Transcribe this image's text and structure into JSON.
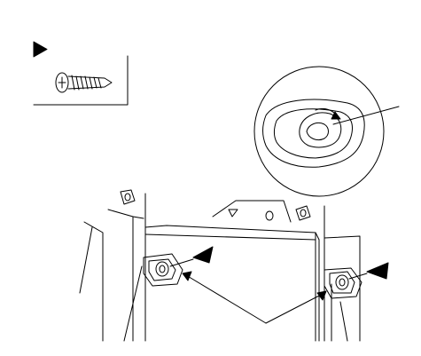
{
  "diagram": {
    "ink_color": "#000000",
    "paper_color": "#ffffff",
    "legend": {
      "marker": "triangle-marker-icon",
      "fastener": "screw-icon"
    },
    "detail_view": {
      "shows": "clip-detail-icon",
      "rotation": "rotate-arrow-icon"
    },
    "fasteners": [
      {
        "id": "upper-left",
        "icon": "screw-hole-icon"
      },
      {
        "id": "upper-right",
        "icon": "screw-hole-icon"
      },
      {
        "id": "lower-left",
        "icon": "clip-mount-icon",
        "marked": true
      },
      {
        "id": "lower-right",
        "icon": "clip-mount-icon",
        "marked": true
      }
    ]
  }
}
